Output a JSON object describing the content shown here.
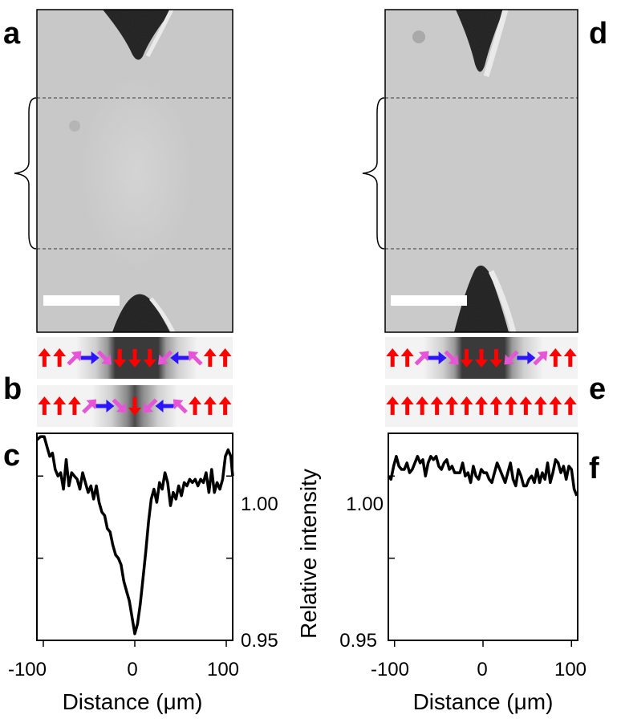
{
  "panel_labels": {
    "a": "a",
    "b": "b",
    "c": "c",
    "d": "d",
    "e": "e",
    "f": "f"
  },
  "colors": {
    "up_down": "#ff0000",
    "horizontal": "#2d14ff",
    "diagonal": "#e655d6",
    "trace": "#000000"
  },
  "chart_data": [
    {
      "panel": "c",
      "type": "line",
      "xlabel": "Distance (μm)",
      "ylabel": "",
      "xlim": [
        -107,
        107
      ],
      "ylim": [
        0.95,
        1.013
      ],
      "x_ticks": [
        -100,
        0,
        100
      ],
      "x_tick_labels": [
        "-100",
        "0",
        "100"
      ],
      "y_ticks": [
        0.95,
        0.975,
        1.0
      ],
      "y_tick_labels": [
        "0.95",
        "",
        "1.00"
      ],
      "grid": false,
      "series": [
        {
          "x": [
            -107,
            -103,
            -99,
            -96,
            -93,
            -90,
            -87,
            -84,
            -81,
            -78,
            -75,
            -72,
            -69,
            -66,
            -63,
            -60,
            -57,
            -54,
            -51,
            -48,
            -45,
            -42,
            -39,
            -36,
            -33,
            -30,
            -27,
            -24,
            -21,
            -18,
            -15,
            -12,
            -9,
            -6,
            -3,
            0,
            3,
            6,
            9,
            12,
            15,
            18,
            21,
            24,
            27,
            30,
            33,
            36,
            39,
            42,
            45,
            48,
            51,
            54,
            57,
            60,
            63,
            66,
            69,
            72,
            75,
            78,
            81,
            84,
            87,
            90,
            93,
            96,
            99,
            102,
            105,
            107
          ],
          "y": [
            1.011,
            1.012,
            1.012,
            1.009,
            1.006,
            1.007,
            1.002,
            1.0,
            1.001,
            0.996,
            1.005,
            0.997,
            1.001,
            1.0,
            0.999,
            0.996,
            1.001,
            0.998,
            0.995,
            0.997,
            0.993,
            0.997,
            0.992,
            0.989,
            0.988,
            0.984,
            0.983,
            0.979,
            0.976,
            0.975,
            0.973,
            0.968,
            0.965,
            0.962,
            0.957,
            0.952,
            0.955,
            0.961,
            0.969,
            0.977,
            0.986,
            0.993,
            0.996,
            0.992,
            0.998,
            0.996,
            1.001,
            0.998,
            0.991,
            0.995,
            0.993,
            0.997,
            0.994,
            0.998,
            0.997,
            0.999,
            0.998,
            0.999,
            0.997,
            0.999,
            0.998,
            1.001,
            0.995,
            1.002,
            0.995,
            0.998,
            0.996,
            0.999,
            1.006,
            1.008,
            1.006,
            1.0
          ]
        }
      ]
    },
    {
      "panel": "f",
      "type": "line",
      "xlabel": "Distance (μm)",
      "ylabel": "Relative intensity",
      "xlim": [
        -107,
        107
      ],
      "ylim": [
        0.95,
        1.013
      ],
      "x_ticks": [
        -100,
        0,
        100
      ],
      "x_tick_labels": [
        "-100",
        "0",
        "100"
      ],
      "y_ticks": [
        0.95,
        0.975,
        1.0
      ],
      "y_tick_labels": [
        "0.95",
        "",
        "1.00"
      ],
      "grid": false,
      "series": [
        {
          "x": [
            -107,
            -104,
            -101,
            -98,
            -95,
            -92,
            -89,
            -86,
            -83,
            -80,
            -77,
            -74,
            -71,
            -68,
            -65,
            -62,
            -59,
            -56,
            -53,
            -50,
            -47,
            -44,
            -41,
            -38,
            -35,
            -32,
            -29,
            -26,
            -23,
            -20,
            -17,
            -14,
            -11,
            -8,
            -5,
            -2,
            1,
            4,
            7,
            10,
            13,
            16,
            19,
            22,
            25,
            28,
            31,
            34,
            37,
            40,
            43,
            46,
            49,
            52,
            55,
            58,
            61,
            64,
            67,
            70,
            73,
            76,
            79,
            82,
            85,
            88,
            91,
            94,
            97,
            100,
            103,
            106
          ],
          "y": [
            1.0,
            0.999,
            1.003,
            1.006,
            1.003,
            1.002,
            1.002,
            1.004,
            1.001,
            1.002,
            1.004,
            1.006,
            1.004,
            1.005,
            1.0,
            1.004,
            1.006,
            1.005,
            1.006,
            1.003,
            1.002,
            1.004,
            1.005,
            1.002,
            1.003,
            1.001,
            1.001,
            1.001,
            1.004,
            1.0,
            1.001,
            0.998,
            1.003,
            1.0,
            0.999,
            1.002,
            1.001,
            1.001,
            0.999,
            0.998,
            1.001,
            1.004,
            1.002,
            1.0,
            0.998,
            1.001,
            1.004,
            0.999,
            0.997,
            1.002,
            1.0,
            0.997,
            0.997,
            0.999,
            1.0,
            0.998,
            1.002,
            0.998,
            1.001,
            0.999,
            1.004,
            0.998,
            1.001,
            1.005,
            1.004,
            1.001,
            1.003,
            0.999,
            1.003,
            1.002,
            0.996,
            0.994
          ]
        }
      ]
    }
  ]
}
